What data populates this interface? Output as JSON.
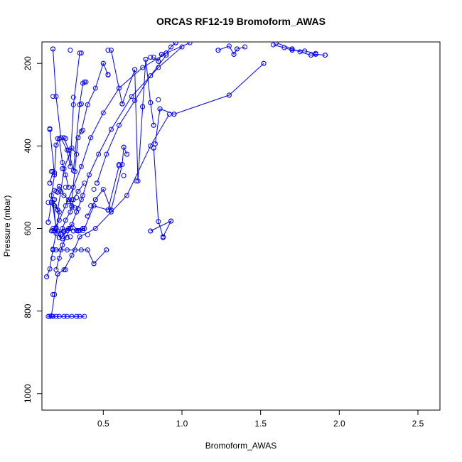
{
  "chart_data": {
    "type": "scatter",
    "title": "ORCAS RF12-19 Bromoform_AWAS",
    "xlabel": "Bromoform_AWAS",
    "ylabel": "Pressure (mbar)",
    "xlim": [
      0.11,
      2.64
    ],
    "ylim": [
      1040,
      148
    ],
    "y_reversed": true,
    "grid": false,
    "xticks": [
      0.5,
      1.0,
      1.5,
      2.0,
      2.5
    ],
    "xtick_labels": [
      "0.5",
      "1.0",
      "1.5",
      "2.0",
      "2.5"
    ],
    "yticks": [
      200,
      400,
      600,
      800,
      1000
    ],
    "ytick_labels": [
      "200",
      "400",
      "600",
      "800",
      "1000"
    ],
    "series_color": "#0000ff",
    "series": [
      {
        "x": [
          0.15,
          0.16,
          0.18,
          0.2,
          0.22,
          0.25,
          0.27,
          0.3,
          0.33,
          0.35,
          0.38
        ],
        "y": [
          813,
          813,
          813,
          813,
          813,
          813,
          813,
          813,
          813,
          813,
          813
        ]
      },
      {
        "x": [
          0.14,
          0.16,
          0.18,
          0.2,
          0.22,
          0.18,
          0.2,
          0.17,
          0.19,
          0.16
        ],
        "y": [
          717,
          698,
          650,
          612,
          560,
          530,
          600,
          520,
          470,
          360
        ]
      },
      {
        "x": [
          0.17,
          0.19,
          0.21,
          0.25,
          0.3,
          0.35,
          0.45,
          0.55,
          0.65,
          0.8,
          0.92
        ],
        "y": [
          812,
          760,
          710,
          700,
          665,
          620,
          600,
          560,
          520,
          400,
          323
        ]
      },
      {
        "x": [
          0.18,
          0.22,
          0.26,
          0.31,
          0.36,
          0.42,
          0.5,
          0.6,
          0.75,
          0.9,
          1.05
        ],
        "y": [
          605,
          580,
          545,
          500,
          450,
          380,
          320,
          260,
          210,
          175,
          150
        ]
      },
      {
        "x": [
          0.2,
          0.24,
          0.29,
          0.33,
          0.37,
          0.41,
          0.47,
          0.55,
          0.68,
          0.85,
          1.0
        ],
        "y": [
          700,
          640,
          600,
          560,
          520,
          470,
          420,
          360,
          280,
          210,
          160
        ]
      },
      {
        "x": [
          0.22,
          0.24,
          0.26,
          0.29,
          0.31,
          0.34,
          0.38
        ],
        "y": [
          622,
          600,
          580,
          560,
          530,
          510,
          490
        ]
      },
      {
        "x": [
          0.2,
          0.23,
          0.27,
          0.32,
          0.36,
          0.4,
          0.44,
          0.52
        ],
        "y": [
          652,
          652,
          652,
          652,
          652,
          652,
          685,
          652
        ]
      },
      {
        "x": [
          0.18,
          0.21,
          0.25,
          0.28,
          0.33,
          0.38,
          0.44,
          0.53,
          0.6
        ],
        "y": [
          605,
          606,
          608,
          600,
          605,
          600,
          545,
          555,
          448
        ]
      },
      {
        "x": [
          0.82,
          0.85,
          0.88,
          0.93,
          0.8
        ],
        "y": [
          405,
          583,
          620,
          582,
          606
        ]
      },
      {
        "x": [
          0.83,
          0.86,
          0.95,
          1.3,
          1.52
        ],
        "y": [
          395,
          310,
          323,
          277,
          200
        ]
      },
      {
        "x": [
          0.18,
          0.2,
          0.23,
          0.27,
          0.29,
          0.31,
          0.35
        ],
        "y": [
          165,
          280,
          380,
          410,
          450,
          300,
          175
        ]
      },
      {
        "x": [
          0.25,
          0.28,
          0.31,
          0.35,
          0.37,
          0.39
        ],
        "y": [
          380,
          410,
          460,
          300,
          248,
          245
        ]
      },
      {
        "x": [
          0.3,
          0.34,
          0.36,
          0.4,
          0.45,
          0.5,
          0.53
        ],
        "y": [
          530,
          380,
          365,
          300,
          260,
          200,
          228
        ]
      },
      {
        "x": [
          0.4,
          0.45,
          0.5,
          0.55,
          0.62,
          0.63,
          0.65
        ],
        "y": [
          570,
          530,
          505,
          555,
          445,
          403,
          420
        ]
      },
      {
        "x": [
          0.55,
          0.62,
          0.7,
          0.72,
          0.75,
          0.77,
          0.8,
          0.82
        ],
        "y": [
          168,
          298,
          215,
          485,
          305,
          190,
          295,
          350
        ]
      },
      {
        "x": [
          0.82,
          0.85,
          0.87,
          0.9,
          0.93,
          0.96
        ],
        "y": [
          185,
          195,
          178,
          175,
          160,
          150
        ]
      },
      {
        "x": [
          1.23,
          1.3,
          1.33,
          1.35,
          1.4
        ],
        "y": [
          168,
          158,
          178,
          165,
          160
        ]
      },
      {
        "x": [
          1.6,
          1.7,
          1.75,
          1.82,
          1.85,
          1.91
        ],
        "y": [
          150,
          165,
          172,
          180,
          178,
          180
        ]
      },
      {
        "x": [
          1.58,
          1.65,
          1.7,
          1.78,
          1.85
        ],
        "y": [
          155,
          162,
          168,
          170,
          176
        ]
      },
      {
        "x": [
          0.16,
          0.18,
          0.19,
          0.2,
          0.22,
          0.24,
          0.26,
          0.28
        ],
        "y": [
          490,
          462,
          465,
          398,
          383,
          440,
          470,
          500
        ]
      },
      {
        "x": [
          0.15,
          0.17,
          0.19,
          0.21,
          0.23,
          0.25,
          0.3,
          0.33
        ],
        "y": [
          585,
          537,
          545,
          555,
          510,
          455,
          405,
          420
        ]
      },
      {
        "x": [
          0.2,
          0.22,
          0.25,
          0.28,
          0.3,
          0.32
        ],
        "y": [
          510,
          498,
          520,
          530,
          545,
          550
        ]
      },
      {
        "x": [
          0.24,
          0.27,
          0.3,
          0.34,
          0.37
        ],
        "y": [
          620,
          605,
          590,
          605,
          600
        ]
      },
      {
        "x": [
          0.46,
          0.52,
          0.6,
          0.7,
          0.8,
          0.9
        ],
        "y": [
          490,
          420,
          350,
          290,
          230,
          180
        ]
      }
    ],
    "extra_points": [
      {
        "x": 0.18,
        "y": 165
      },
      {
        "x": 0.29,
        "y": 168
      },
      {
        "x": 0.36,
        "y": 175
      },
      {
        "x": 0.18,
        "y": 280
      },
      {
        "x": 0.31,
        "y": 282
      },
      {
        "x": 0.16,
        "y": 358
      },
      {
        "x": 0.21,
        "y": 382
      },
      {
        "x": 0.26,
        "y": 382
      },
      {
        "x": 0.2,
        "y": 398
      },
      {
        "x": 0.28,
        "y": 410
      },
      {
        "x": 0.37,
        "y": 362
      },
      {
        "x": 0.36,
        "y": 298
      },
      {
        "x": 0.38,
        "y": 245
      },
      {
        "x": 0.5,
        "y": 200
      },
      {
        "x": 0.53,
        "y": 227
      },
      {
        "x": 0.53,
        "y": 168
      },
      {
        "x": 0.62,
        "y": 298
      },
      {
        "x": 0.7,
        "y": 215
      },
      {
        "x": 0.75,
        "y": 305
      },
      {
        "x": 0.77,
        "y": 190
      },
      {
        "x": 0.8,
        "y": 295
      },
      {
        "x": 0.8,
        "y": 185
      },
      {
        "x": 0.82,
        "y": 350
      },
      {
        "x": 0.85,
        "y": 195
      },
      {
        "x": 0.87,
        "y": 178
      },
      {
        "x": 0.86,
        "y": 310
      },
      {
        "x": 0.85,
        "y": 288
      },
      {
        "x": 0.95,
        "y": 323
      },
      {
        "x": 0.96,
        "y": 150
      },
      {
        "x": 0.63,
        "y": 403
      },
      {
        "x": 0.65,
        "y": 420
      },
      {
        "x": 0.6,
        "y": 445
      },
      {
        "x": 0.63,
        "y": 472
      },
      {
        "x": 0.71,
        "y": 485
      },
      {
        "x": 0.46,
        "y": 490
      },
      {
        "x": 0.44,
        "y": 505
      },
      {
        "x": 0.45,
        "y": 530
      },
      {
        "x": 0.42,
        "y": 545
      },
      {
        "x": 0.53,
        "y": 555
      },
      {
        "x": 0.4,
        "y": 570
      },
      {
        "x": 0.36,
        "y": 530
      },
      {
        "x": 0.34,
        "y": 552
      },
      {
        "x": 0.3,
        "y": 548
      },
      {
        "x": 0.28,
        "y": 535
      },
      {
        "x": 0.33,
        "y": 525
      },
      {
        "x": 0.32,
        "y": 462
      },
      {
        "x": 0.26,
        "y": 500
      },
      {
        "x": 0.24,
        "y": 455
      },
      {
        "x": 0.17,
        "y": 462
      },
      {
        "x": 0.16,
        "y": 490
      },
      {
        "x": 0.19,
        "y": 508
      },
      {
        "x": 0.21,
        "y": 512
      },
      {
        "x": 0.15,
        "y": 537
      },
      {
        "x": 0.17,
        "y": 537
      },
      {
        "x": 0.19,
        "y": 530
      },
      {
        "x": 0.19,
        "y": 545
      },
      {
        "x": 0.21,
        "y": 555
      },
      {
        "x": 0.15,
        "y": 585
      },
      {
        "x": 0.18,
        "y": 600
      },
      {
        "x": 0.17,
        "y": 606
      },
      {
        "x": 0.19,
        "y": 606
      },
      {
        "x": 0.21,
        "y": 606
      },
      {
        "x": 0.2,
        "y": 598
      },
      {
        "x": 0.25,
        "y": 606
      },
      {
        "x": 0.27,
        "y": 605
      },
      {
        "x": 0.23,
        "y": 615
      },
      {
        "x": 0.22,
        "y": 622
      },
      {
        "x": 0.24,
        "y": 625
      },
      {
        "x": 0.27,
        "y": 622
      },
      {
        "x": 0.29,
        "y": 620
      },
      {
        "x": 0.31,
        "y": 606
      },
      {
        "x": 0.34,
        "y": 606
      },
      {
        "x": 0.35,
        "y": 605
      },
      {
        "x": 0.37,
        "y": 600
      },
      {
        "x": 0.37,
        "y": 605
      },
      {
        "x": 0.4,
        "y": 615
      },
      {
        "x": 0.2,
        "y": 652
      },
      {
        "x": 0.18,
        "y": 652
      },
      {
        "x": 0.52,
        "y": 652
      },
      {
        "x": 0.44,
        "y": 685
      },
      {
        "x": 0.18,
        "y": 672
      },
      {
        "x": 0.22,
        "y": 672
      },
      {
        "x": 0.21,
        "y": 710
      },
      {
        "x": 0.26,
        "y": 700
      },
      {
        "x": 0.14,
        "y": 717
      },
      {
        "x": 0.18,
        "y": 760
      },
      {
        "x": 0.8,
        "y": 606
      },
      {
        "x": 0.88,
        "y": 622
      },
      {
        "x": 0.93,
        "y": 582
      },
      {
        "x": 0.82,
        "y": 405
      },
      {
        "x": 0.83,
        "y": 395
      },
      {
        "x": 1.3,
        "y": 277
      },
      {
        "x": 1.52,
        "y": 200
      },
      {
        "x": 1.23,
        "y": 168
      },
      {
        "x": 1.33,
        "y": 178
      },
      {
        "x": 1.35,
        "y": 165
      },
      {
        "x": 1.7,
        "y": 165
      },
      {
        "x": 1.82,
        "y": 180
      },
      {
        "x": 1.91,
        "y": 180
      }
    ]
  }
}
